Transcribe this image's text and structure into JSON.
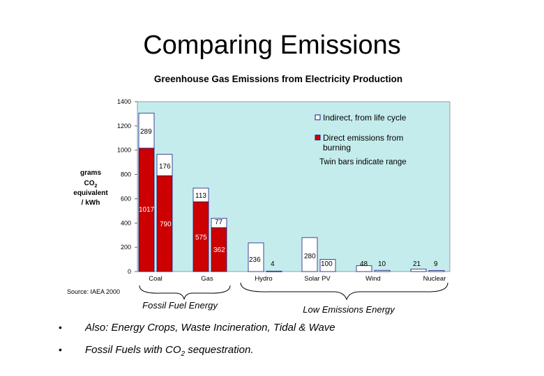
{
  "slide": {
    "title": "Comparing Emissions",
    "bullets": [
      {
        "symbol": "•",
        "text": "Also: Energy Crops, Waste Incineration, Tidal & Wave"
      },
      {
        "symbol": "•",
        "text_before": "Fossil Fuels with CO",
        "subscript": "2",
        "text_after": " sequestration."
      }
    ]
  },
  "chart_data": {
    "type": "bar",
    "stacked": true,
    "title": "Greenhouse Gas Emissions from Electricity Production",
    "ylabel_lines": [
      "grams",
      "CO",
      "equivalent",
      "/ kWh"
    ],
    "ylabel_subscript": "2",
    "ylim": [
      0,
      1400
    ],
    "yticks": [
      0,
      200,
      400,
      600,
      800,
      1000,
      1200,
      1400
    ],
    "categories": [
      "Coal",
      "Gas",
      "Hydro",
      "Solar PV",
      "Wind",
      "Nuclear"
    ],
    "bars": [
      {
        "category": "Coal",
        "direct": 1017,
        "indirect": 289,
        "direct_label": "1017",
        "indirect_label": "289"
      },
      {
        "category": "Coal",
        "direct": 790,
        "indirect": 176,
        "direct_label": "790",
        "indirect_label": "176"
      },
      {
        "category": "Gas",
        "direct": 575,
        "indirect": 113,
        "direct_label": "575",
        "indirect_label": "113"
      },
      {
        "category": "Gas",
        "direct": 362,
        "indirect": 77,
        "direct_label": "362",
        "indirect_label": "77"
      },
      {
        "category": "Hydro",
        "direct": 0,
        "indirect": 236,
        "indirect_label": "236"
      },
      {
        "category": "Hydro",
        "direct": 0,
        "indirect": 4,
        "indirect_label": "4"
      },
      {
        "category": "Solar PV",
        "direct": 0,
        "indirect": 280,
        "indirect_label": "280"
      },
      {
        "category": "Solar PV",
        "direct": 0,
        "indirect": 100,
        "indirect_label": "100"
      },
      {
        "category": "Wind",
        "direct": 0,
        "indirect": 48,
        "indirect_label": "48"
      },
      {
        "category": "Wind",
        "direct": 0,
        "indirect": 10,
        "indirect_label": "10"
      },
      {
        "category": "Nuclear",
        "direct": 0,
        "indirect": 21,
        "indirect_label": "21"
      },
      {
        "category": "Nuclear",
        "direct": 0,
        "indirect": 9,
        "indirect_label": "9"
      }
    ],
    "series": [
      {
        "name": "Indirect, from life cycle",
        "color": "#ffffff"
      },
      {
        "name": "Direct emissions from burning",
        "color": "#cc0000"
      }
    ],
    "legend_lines": {
      "indirect": [
        "Indirect, from life cycle"
      ],
      "direct": [
        "Direct emissions from",
        "burning"
      ]
    },
    "note": "Twin bars indicate range",
    "source": "Source: IAEA 2000",
    "groups": [
      {
        "label": "Fossil Fuel Energy"
      },
      {
        "label": "Low Emissions Energy"
      }
    ],
    "colors": {
      "plot_background": "#c5ecec",
      "direct": "#cc0000",
      "indirect": "#ffffff",
      "bar_outline": "#1a1a80"
    }
  }
}
